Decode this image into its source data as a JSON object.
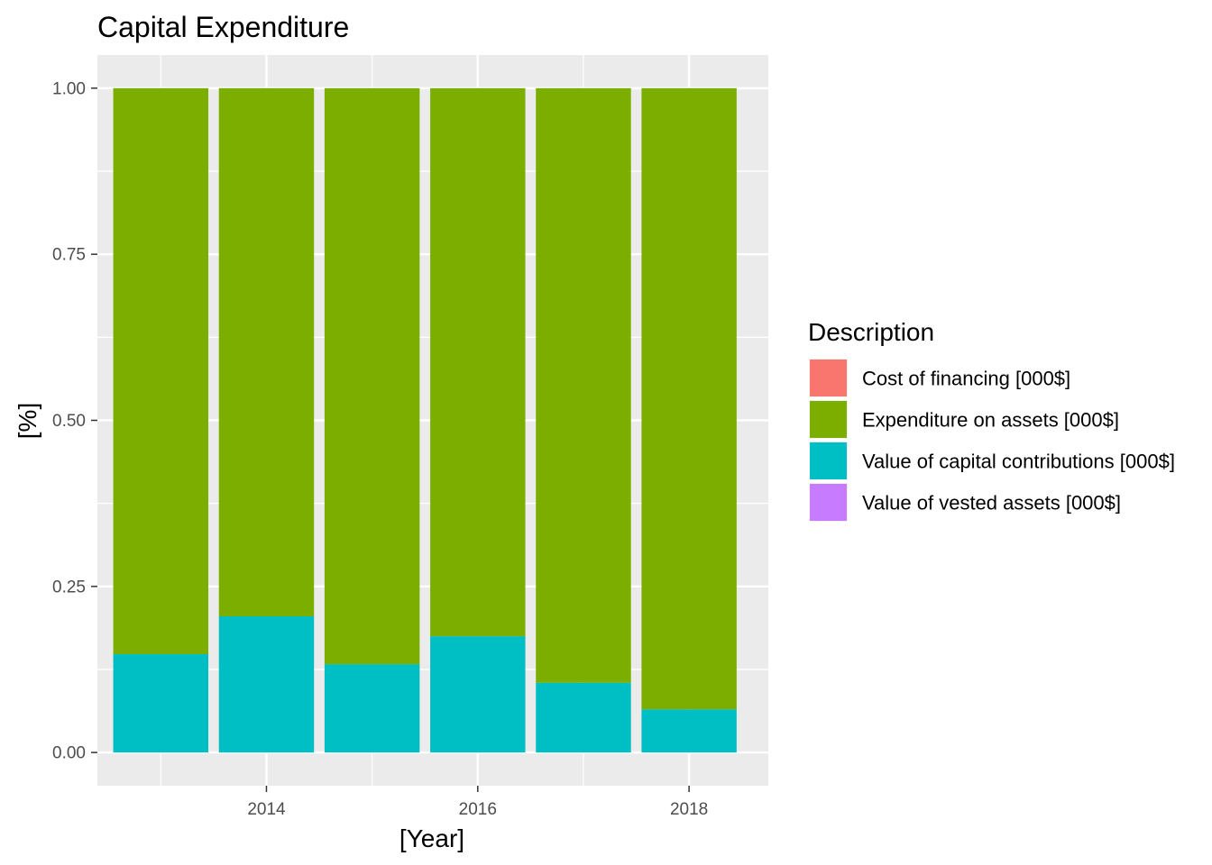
{
  "chart_data": {
    "type": "bar",
    "stacked": true,
    "position": "fill",
    "title": "Capital Expenditure",
    "xlabel": "[Year]",
    "ylabel": "[%]",
    "x": [
      2013,
      2014,
      2015,
      2016,
      2017,
      2018
    ],
    "x_ticks": [
      2014,
      2016,
      2018
    ],
    "x_tick_labels": [
      "2014",
      "2016",
      "2018"
    ],
    "xlim": [
      2012.4,
      2018.75
    ],
    "ylim": [
      -0.05,
      1.05
    ],
    "y_ticks": [
      0,
      0.25,
      0.5,
      0.75,
      1
    ],
    "y_tick_labels": [
      "0.00",
      "0.25",
      "0.50",
      "0.75",
      "1.00"
    ],
    "grid": true,
    "legend_position": "right",
    "legend_title": "Description",
    "series": [
      {
        "name": "Cost of financing [000$]",
        "color": "#F8766D",
        "values": [
          0,
          0,
          0,
          0,
          0,
          0
        ]
      },
      {
        "name": "Expenditure on assets [000$]",
        "color": "#7CAE00",
        "values": [
          0.852,
          0.795,
          0.867,
          0.825,
          0.895,
          0.935
        ]
      },
      {
        "name": "Value of capital contributions [000$]",
        "color": "#00BFC4",
        "values": [
          0.148,
          0.205,
          0.133,
          0.175,
          0.105,
          0.065
        ]
      },
      {
        "name": "Value of vested assets [000$]",
        "color": "#C77CFF",
        "values": [
          0,
          0,
          0,
          0,
          0,
          0
        ]
      }
    ]
  }
}
